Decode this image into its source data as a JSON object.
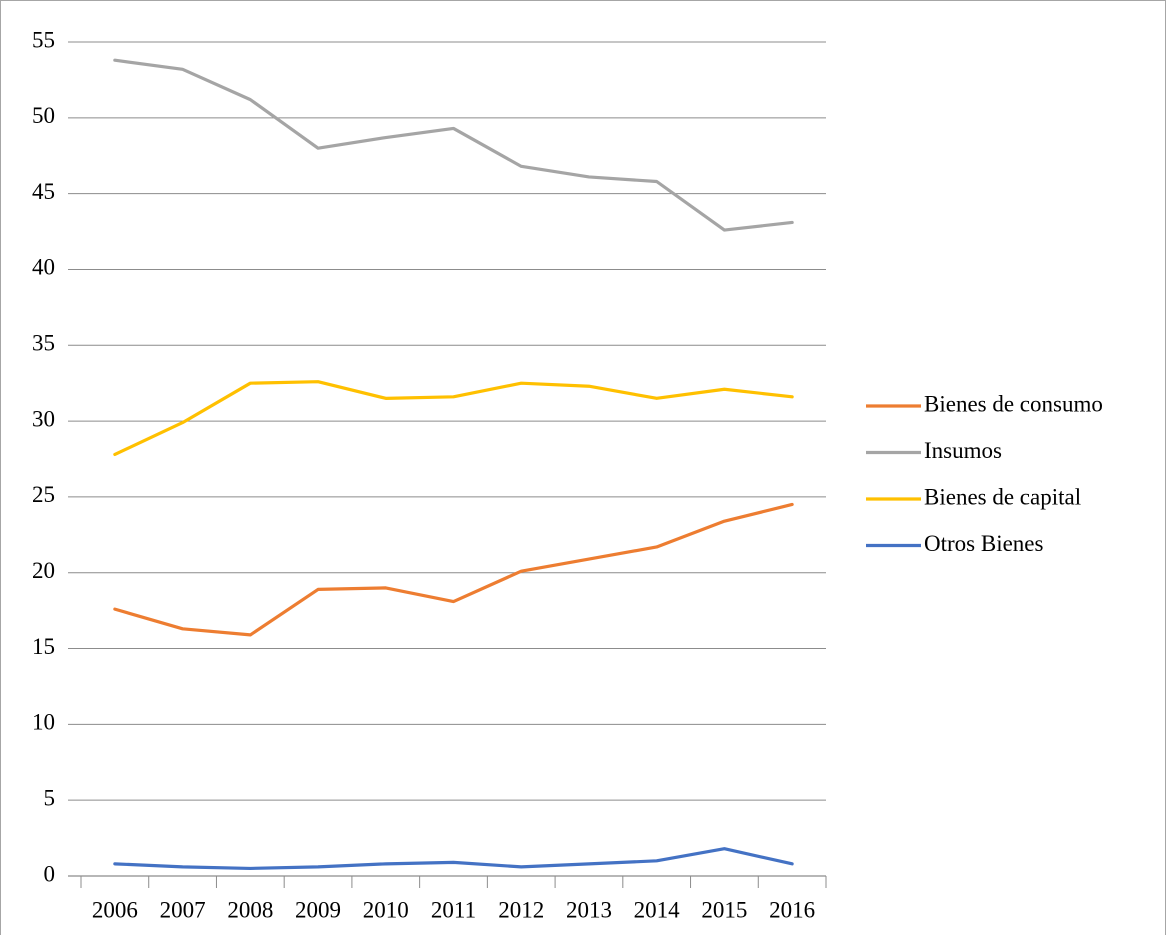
{
  "chart_data": {
    "type": "line",
    "categories": [
      "2006",
      "2007",
      "2008",
      "2009",
      "2010",
      "2011",
      "2012",
      "2013",
      "2014",
      "2015",
      "2016"
    ],
    "series": [
      {
        "name": "Bienes de consumo",
        "color": "#ED7D31",
        "values": [
          17.6,
          16.3,
          15.9,
          18.9,
          19.0,
          18.1,
          20.1,
          20.9,
          21.7,
          23.4,
          24.5
        ]
      },
      {
        "name": "Insumos",
        "color": "#A5A5A5",
        "values": [
          53.8,
          53.2,
          51.2,
          48.0,
          48.7,
          49.3,
          46.8,
          46.1,
          45.8,
          42.6,
          43.1
        ]
      },
      {
        "name": "Bienes de capital",
        "color": "#FFC000",
        "values": [
          27.8,
          29.9,
          32.5,
          32.6,
          31.5,
          31.6,
          32.5,
          32.3,
          31.5,
          32.1,
          31.6
        ]
      },
      {
        "name": "Otros Bienes",
        "color": "#4472C4",
        "values": [
          0.8,
          0.6,
          0.5,
          0.6,
          0.8,
          0.9,
          0.6,
          0.8,
          1.0,
          1.8,
          0.8
        ]
      }
    ],
    "ylim": [
      0,
      55
    ],
    "yticks": [
      0,
      5,
      10,
      15,
      20,
      25,
      30,
      35,
      40,
      45,
      50,
      55
    ],
    "grid": true,
    "legend": "right"
  }
}
